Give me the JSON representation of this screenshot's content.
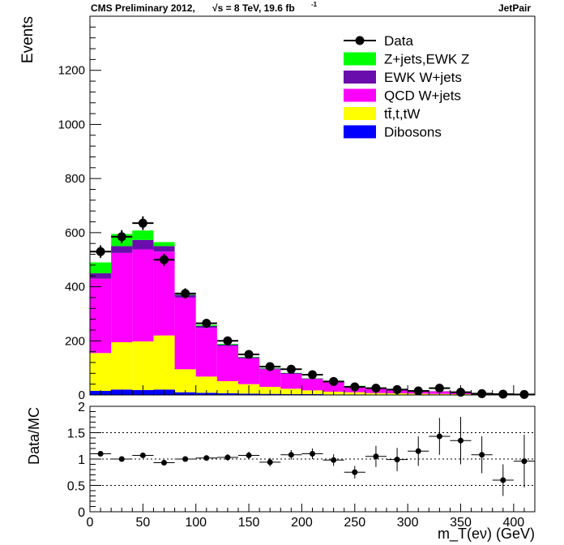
{
  "header": {
    "left_main": "CMS Preliminary 2012,",
    "left_energy": "√s = 8 TeV, 19.6 fb",
    "left_lumi_exp": "-1",
    "right": "JetPair"
  },
  "chart_data": [
    {
      "type": "bar",
      "stacked": true,
      "ylabel": "Events",
      "ylim": [
        0,
        1400
      ],
      "yticks": [
        0,
        200,
        400,
        600,
        800,
        1000,
        1200
      ],
      "xlim": [
        0,
        420
      ],
      "bin_width": 20,
      "x": [
        10,
        30,
        50,
        70,
        90,
        110,
        130,
        150,
        170,
        190,
        210,
        230,
        250,
        270,
        290,
        310,
        330,
        350,
        370,
        390,
        410
      ],
      "series": [
        {
          "name": "Dibosons",
          "color": "#0000ff",
          "values": [
            15,
            20,
            18,
            20,
            10,
            8,
            6,
            5,
            4,
            3,
            3,
            2,
            2,
            1,
            1,
            1,
            1,
            1,
            0,
            0,
            0
          ]
        },
        {
          "name": "tt̄,t,tW",
          "color": "#ffff00",
          "values": [
            140,
            175,
            180,
            200,
            85,
            60,
            45,
            35,
            26,
            20,
            14,
            10,
            8,
            6,
            5,
            4,
            3,
            2,
            2,
            1,
            1
          ]
        },
        {
          "name": "QCD W+jets",
          "color": "#ff00ff",
          "values": [
            275,
            330,
            340,
            310,
            265,
            180,
            130,
            95,
            65,
            55,
            42,
            35,
            22,
            18,
            14,
            12,
            9,
            7,
            4,
            2,
            2
          ]
        },
        {
          "name": "EWK W+jets",
          "color": "#6a0dad",
          "values": [
            20,
            25,
            35,
            20,
            10,
            7,
            5,
            4,
            3,
            3,
            2,
            2,
            1,
            1,
            1,
            1,
            1,
            1,
            1,
            0,
            0
          ]
        },
        {
          "name": "Z+jets,EWK Z",
          "color": "#00ff00",
          "values": [
            40,
            45,
            35,
            15,
            5,
            4,
            3,
            2,
            2,
            1,
            1,
            1,
            1,
            1,
            1,
            0,
            0,
            0,
            0,
            0,
            0
          ]
        }
      ],
      "data": {
        "name": "Data",
        "values": [
          530,
          585,
          635,
          500,
          375,
          265,
          200,
          150,
          105,
          95,
          75,
          50,
          30,
          25,
          20,
          15,
          25,
          10,
          5,
          3,
          2
        ]
      },
      "legend": [
        "Data",
        "Z+jets,EWK Z",
        "EWK W+jets",
        "QCD W+jets",
        "tt̄,t,tW",
        "Dibosons"
      ],
      "legend_position": "top-right"
    },
    {
      "type": "scatter",
      "ylabel": "Data/MC",
      "xlabel": "m_T(eν) (GeV)",
      "ylim": [
        0,
        2
      ],
      "yticks": [
        0,
        0.5,
        1,
        1.5,
        2
      ],
      "xlim": [
        0,
        420
      ],
      "xticks": [
        0,
        50,
        100,
        150,
        200,
        250,
        300,
        350,
        400
      ],
      "reference_lines": [
        0.5,
        1,
        1.5
      ],
      "x": [
        10,
        30,
        50,
        70,
        90,
        110,
        130,
        150,
        170,
        190,
        210,
        230,
        250,
        270,
        290,
        310,
        330,
        350,
        370,
        390,
        410
      ],
      "values": [
        1.1,
        1.0,
        1.07,
        0.93,
        1.0,
        1.02,
        1.03,
        1.07,
        0.94,
        1.08,
        1.1,
        0.98,
        0.75,
        1.05,
        0.99,
        1.15,
        1.43,
        1.35,
        1.08,
        0.6,
        0.96
      ],
      "errors": [
        0.04,
        0.03,
        0.03,
        0.03,
        0.04,
        0.05,
        0.06,
        0.07,
        0.08,
        0.09,
        0.1,
        0.11,
        0.12,
        0.2,
        0.22,
        0.28,
        0.35,
        0.45,
        0.35,
        0.3,
        0.5
      ]
    }
  ]
}
